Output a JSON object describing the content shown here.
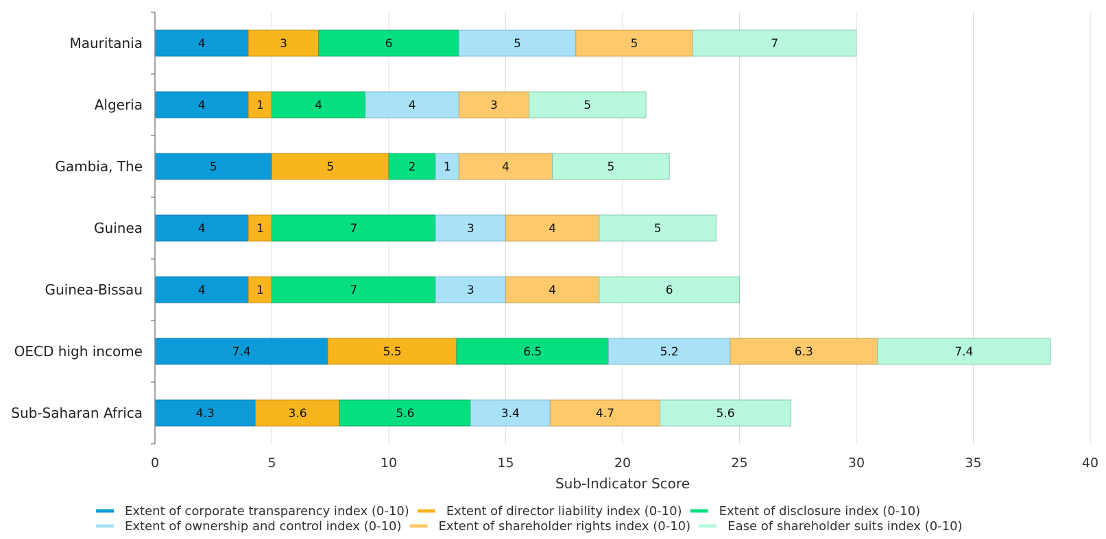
{
  "chart_data": {
    "type": "bar",
    "orientation": "horizontal",
    "stacked": true,
    "xlabel": "Sub-Indicator Score",
    "ylabel": "",
    "xlim": [
      0,
      40
    ],
    "xticks": [
      "0",
      "5",
      "10",
      "15",
      "20",
      "25",
      "30",
      "35",
      "40"
    ],
    "grid": "vertical",
    "legend_position": "bottom",
    "categories": [
      "Mauritania",
      "Algeria",
      "Gambia, The",
      "Guinea",
      "Guinea-Bissau",
      "OECD high income",
      "Sub-Saharan Africa"
    ],
    "series": [
      {
        "name": "Extent of corporate transparency index (0-10)",
        "color": "#0b9bd8",
        "border": "#1a7fb0",
        "values": [
          4,
          4,
          5,
          4,
          4,
          7.4,
          4.3
        ],
        "labels": [
          "4",
          "4",
          "5",
          "4",
          "4",
          "7.4",
          "4.3"
        ]
      },
      {
        "name": "Extent of director liability index (0-10)",
        "color": "#f9b51e",
        "border": "#c99020",
        "values": [
          3,
          1,
          5,
          1,
          1,
          5.5,
          3.6
        ],
        "labels": [
          "3",
          "1",
          "5",
          "1",
          "1",
          "5.5",
          "3.6"
        ]
      },
      {
        "name": "Extent of disclosure index (0-10)",
        "color": "#05df80",
        "border": "#14a868",
        "values": [
          6,
          4,
          2,
          7,
          7,
          6.5,
          5.6
        ],
        "labels": [
          "6",
          "4",
          "2",
          "7",
          "7",
          "6.5",
          "5.6"
        ]
      },
      {
        "name": "Extent of ownership and control index (0-10)",
        "color": "#a8e1f8",
        "border": "#86b9cf",
        "values": [
          5,
          4,
          1,
          3,
          3,
          5.2,
          3.4
        ],
        "labels": [
          "5",
          "4",
          "1",
          "3",
          "3",
          "5.2",
          "3.4"
        ]
      },
      {
        "name": "Extent of shareholder rights index (0-10)",
        "color": "#fdc96a",
        "border": "#caa05a",
        "values": [
          5,
          3,
          4,
          4,
          4,
          6.3,
          4.7
        ],
        "labels": [
          "5",
          "3",
          "4",
          "4",
          "4",
          "6.3",
          "4.7"
        ]
      },
      {
        "name": "Ease of shareholder suits index (0-10)",
        "color": "#b8f8dd",
        "border": "#8fc7ae",
        "values": [
          7,
          5,
          5,
          5,
          6,
          7.4,
          5.6
        ],
        "labels": [
          "7",
          "5",
          "5",
          "5",
          "6",
          "7.4",
          "5.6"
        ]
      }
    ]
  }
}
